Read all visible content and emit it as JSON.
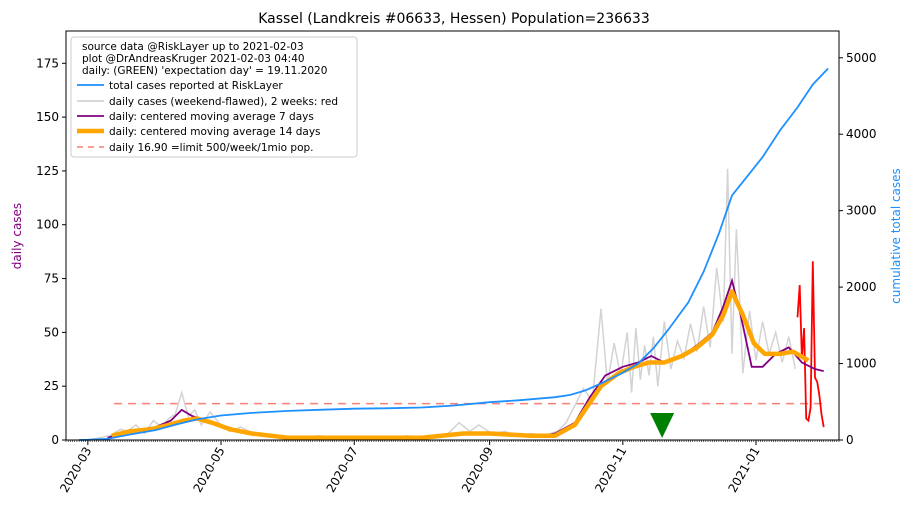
{
  "chart_data": {
    "type": "line",
    "title": "Kassel (Landkreis #06633, Hessen) Population=236633",
    "ylabel_left": "daily cases",
    "ylabel_right": "cumulative total cases",
    "ylim_left": [
      0,
      190
    ],
    "ylim_right": [
      0,
      5350
    ],
    "xlim": [
      "2020-02-20",
      "2021-02-08"
    ],
    "yticks_left": [
      0,
      25,
      50,
      75,
      100,
      125,
      150,
      175
    ],
    "yticks_right": [
      0,
      1000,
      2000,
      3000,
      4000,
      5000
    ],
    "xticks": [
      "2020-03",
      "2020-05",
      "2020-07",
      "2020-09",
      "2020-11",
      "2021-01"
    ],
    "colors": {
      "total": "#1e90ff",
      "daily": "#d3d3d3",
      "daily_recent": "#ff0000",
      "ma7": "#800080",
      "ma14": "#ffa500",
      "limit": "#fa8072",
      "expectation_marker": "#008000"
    },
    "legend": {
      "placement": "upper-left",
      "notes": [
        "source data @RiskLayer up to 2021-02-03",
        "plot @DrAndreasKruger 2021-02-03 04:40",
        "daily: (GREEN) 'expectation day' = 19.11.2020"
      ],
      "entries": [
        {
          "label": "total cases reported at RiskLayer",
          "series": "total"
        },
        {
          "label": "daily cases (weekend-flawed), 2 weeks: red",
          "series": "daily"
        },
        {
          "label": "daily: centered moving average 7 days",
          "series": "ma7"
        },
        {
          "label": "daily: centered moving average 14 days",
          "series": "ma14"
        },
        {
          "label": "daily 16.90 =limit 500/week/1mio pop.",
          "series": "limit"
        }
      ]
    },
    "limit_value": 16.9,
    "expectation_day": "2020-11-19",
    "series": {
      "total": [
        [
          "2020-02-26",
          0
        ],
        [
          "2020-03-01",
          2
        ],
        [
          "2020-03-10",
          15
        ],
        [
          "2020-03-20",
          70
        ],
        [
          "2020-04-01",
          130
        ],
        [
          "2020-04-10",
          200
        ],
        [
          "2020-04-20",
          270
        ],
        [
          "2020-05-01",
          320
        ],
        [
          "2020-05-15",
          355
        ],
        [
          "2020-06-01",
          380
        ],
        [
          "2020-06-15",
          395
        ],
        [
          "2020-07-01",
          410
        ],
        [
          "2020-07-15",
          415
        ],
        [
          "2020-08-01",
          425
        ],
        [
          "2020-08-15",
          450
        ],
        [
          "2020-09-01",
          495
        ],
        [
          "2020-09-15",
          520
        ],
        [
          "2020-10-01",
          560
        ],
        [
          "2020-10-08",
          590
        ],
        [
          "2020-10-15",
          650
        ],
        [
          "2020-10-22",
          740
        ],
        [
          "2020-11-01",
          880
        ],
        [
          "2020-11-08",
          1000
        ],
        [
          "2020-11-15",
          1200
        ],
        [
          "2020-11-22",
          1450
        ],
        [
          "2020-12-01",
          1800
        ],
        [
          "2020-12-08",
          2200
        ],
        [
          "2020-12-15",
          2700
        ],
        [
          "2020-12-21",
          3200
        ],
        [
          "2020-12-28",
          3450
        ],
        [
          "2021-01-04",
          3700
        ],
        [
          "2021-01-12",
          4050
        ],
        [
          "2021-01-20",
          4350
        ],
        [
          "2021-01-27",
          4650
        ],
        [
          "2021-02-03",
          4860
        ]
      ],
      "daily": [
        [
          "2020-03-01",
          0
        ],
        [
          "2020-03-06",
          1
        ],
        [
          "2020-03-11",
          2
        ],
        [
          "2020-03-16",
          5
        ],
        [
          "2020-03-19",
          4
        ],
        [
          "2020-03-23",
          7
        ],
        [
          "2020-03-27",
          3
        ],
        [
          "2020-03-31",
          9
        ],
        [
          "2020-04-04",
          6
        ],
        [
          "2020-04-07",
          10
        ],
        [
          "2020-04-10",
          12
        ],
        [
          "2020-04-13",
          22
        ],
        [
          "2020-04-16",
          11
        ],
        [
          "2020-04-19",
          14
        ],
        [
          "2020-04-22",
          7
        ],
        [
          "2020-04-26",
          13
        ],
        [
          "2020-04-30",
          8
        ],
        [
          "2020-05-05",
          4
        ],
        [
          "2020-05-10",
          6
        ],
        [
          "2020-05-16",
          3
        ],
        [
          "2020-05-22",
          2
        ],
        [
          "2020-05-28",
          1
        ],
        [
          "2020-06-05",
          1
        ],
        [
          "2020-06-15",
          2
        ],
        [
          "2020-06-25",
          1
        ],
        [
          "2020-07-05",
          1
        ],
        [
          "2020-07-15",
          0
        ],
        [
          "2020-07-25",
          2
        ],
        [
          "2020-08-05",
          1
        ],
        [
          "2020-08-12",
          2
        ],
        [
          "2020-08-18",
          8
        ],
        [
          "2020-08-23",
          4
        ],
        [
          "2020-08-27",
          7
        ],
        [
          "2020-09-02",
          3
        ],
        [
          "2020-09-08",
          4
        ],
        [
          "2020-09-14",
          2
        ],
        [
          "2020-09-20",
          3
        ],
        [
          "2020-09-26",
          2
        ],
        [
          "2020-10-02",
          4
        ],
        [
          "2020-10-06",
          8
        ],
        [
          "2020-10-10",
          16
        ],
        [
          "2020-10-14",
          24
        ],
        [
          "2020-10-18",
          18
        ],
        [
          "2020-10-22",
          61
        ],
        [
          "2020-10-25",
          26
        ],
        [
          "2020-10-28",
          45
        ],
        [
          "2020-10-31",
          30
        ],
        [
          "2020-11-03",
          50
        ],
        [
          "2020-11-05",
          22
        ],
        [
          "2020-11-07",
          52
        ],
        [
          "2020-11-09",
          28
        ],
        [
          "2020-11-11",
          44
        ],
        [
          "2020-11-13",
          30
        ],
        [
          "2020-11-15",
          48
        ],
        [
          "2020-11-17",
          25
        ],
        [
          "2020-11-20",
          55
        ],
        [
          "2020-11-23",
          33
        ],
        [
          "2020-11-26",
          46
        ],
        [
          "2020-11-29",
          38
        ],
        [
          "2020-12-02",
          54
        ],
        [
          "2020-12-05",
          41
        ],
        [
          "2020-12-08",
          62
        ],
        [
          "2020-12-11",
          43
        ],
        [
          "2020-12-14",
          80
        ],
        [
          "2020-12-17",
          55
        ],
        [
          "2020-12-19",
          126
        ],
        [
          "2020-12-21",
          40
        ],
        [
          "2020-12-23",
          98
        ],
        [
          "2020-12-26",
          31
        ],
        [
          "2020-12-29",
          60
        ],
        [
          "2021-01-01",
          37
        ],
        [
          "2021-01-04",
          55
        ],
        [
          "2021-01-07",
          40
        ],
        [
          "2021-01-10",
          50
        ],
        [
          "2021-01-13",
          36
        ],
        [
          "2021-01-16",
          48
        ],
        [
          "2021-01-19",
          33
        ]
      ],
      "daily_recent": [
        [
          "2021-01-20",
          57
        ],
        [
          "2021-01-21",
          72
        ],
        [
          "2021-01-22",
          38
        ],
        [
          "2021-01-23",
          52
        ],
        [
          "2021-01-24",
          10
        ],
        [
          "2021-01-25",
          9
        ],
        [
          "2021-01-26",
          15
        ],
        [
          "2021-01-27",
          83
        ],
        [
          "2021-01-28",
          29
        ],
        [
          "2021-01-29",
          27
        ],
        [
          "2021-01-30",
          21
        ],
        [
          "2021-01-31",
          12
        ],
        [
          "2021-02-01",
          6
        ]
      ],
      "ma7": [
        [
          "2020-03-10",
          1
        ],
        [
          "2020-03-17",
          3
        ],
        [
          "2020-03-25",
          5
        ],
        [
          "2020-04-01",
          6
        ],
        [
          "2020-04-08",
          9
        ],
        [
          "2020-04-13",
          14
        ],
        [
          "2020-04-18",
          11
        ],
        [
          "2020-04-25",
          9
        ],
        [
          "2020-05-01",
          7
        ],
        [
          "2020-05-10",
          4
        ],
        [
          "2020-05-20",
          2
        ],
        [
          "2020-06-01",
          1
        ],
        [
          "2020-07-01",
          1
        ],
        [
          "2020-08-01",
          1
        ],
        [
          "2020-08-15",
          3
        ],
        [
          "2020-08-25",
          3
        ],
        [
          "2020-09-10",
          2
        ],
        [
          "2020-09-25",
          2
        ],
        [
          "2020-10-01",
          3
        ],
        [
          "2020-10-10",
          8
        ],
        [
          "2020-10-17",
          20
        ],
        [
          "2020-10-24",
          30
        ],
        [
          "2020-11-01",
          34
        ],
        [
          "2020-11-08",
          36
        ],
        [
          "2020-11-14",
          39
        ],
        [
          "2020-11-20",
          36
        ],
        [
          "2020-11-28",
          39
        ],
        [
          "2020-12-05",
          44
        ],
        [
          "2020-12-12",
          50
        ],
        [
          "2020-12-17",
          62
        ],
        [
          "2020-12-21",
          74
        ],
        [
          "2020-12-25",
          58
        ],
        [
          "2020-12-30",
          34
        ],
        [
          "2021-01-04",
          34
        ],
        [
          "2021-01-10",
          40
        ],
        [
          "2021-01-16",
          43
        ],
        [
          "2021-01-22",
          36
        ],
        [
          "2021-01-28",
          33
        ],
        [
          "2021-02-01",
          32
        ]
      ],
      "ma14": [
        [
          "2020-03-12",
          2
        ],
        [
          "2020-03-20",
          4
        ],
        [
          "2020-03-30",
          5
        ],
        [
          "2020-04-07",
          7
        ],
        [
          "2020-04-14",
          9
        ],
        [
          "2020-04-20",
          10
        ],
        [
          "2020-04-27",
          8
        ],
        [
          "2020-05-05",
          5
        ],
        [
          "2020-05-15",
          3
        ],
        [
          "2020-06-01",
          1
        ],
        [
          "2020-07-01",
          1
        ],
        [
          "2020-08-01",
          1
        ],
        [
          "2020-08-20",
          3
        ],
        [
          "2020-09-01",
          3
        ],
        [
          "2020-09-20",
          2
        ],
        [
          "2020-10-01",
          2
        ],
        [
          "2020-10-10",
          7
        ],
        [
          "2020-10-16",
          16
        ],
        [
          "2020-10-22",
          25
        ],
        [
          "2020-10-30",
          31
        ],
        [
          "2020-11-06",
          34
        ],
        [
          "2020-11-13",
          36
        ],
        [
          "2020-11-20",
          36
        ],
        [
          "2020-11-28",
          39
        ],
        [
          "2020-12-05",
          43
        ],
        [
          "2020-12-12",
          49
        ],
        [
          "2020-12-17",
          58
        ],
        [
          "2020-12-21",
          69
        ],
        [
          "2020-12-26",
          58
        ],
        [
          "2020-12-31",
          45
        ],
        [
          "2021-01-05",
          40
        ],
        [
          "2021-01-12",
          40
        ],
        [
          "2021-01-18",
          41
        ],
        [
          "2021-01-25",
          37
        ]
      ]
    }
  }
}
